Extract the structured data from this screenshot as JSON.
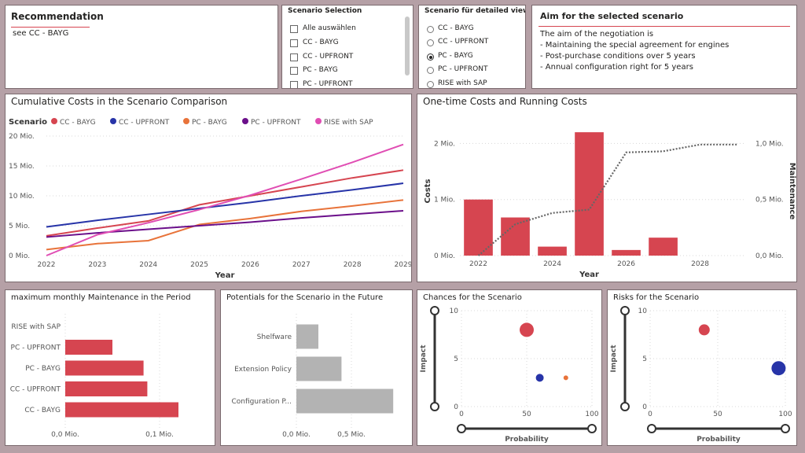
{
  "recommendation": {
    "title": "Recommendation",
    "text": "see CC - BAYG"
  },
  "scenario_selection": {
    "title": "Scenario Selection",
    "items": [
      "Alle auswählen",
      "CC - BAYG",
      "CC - UPFRONT",
      "PC - BAYG",
      "PC - UPFRONT"
    ]
  },
  "scenario_detail": {
    "title": "Scenario für detailed view",
    "items": [
      "CC - BAYG",
      "CC - UPFRONT",
      "PC - BAYG",
      "PC - UPFRONT",
      "RISE with SAP"
    ],
    "selected": "PC - BAYG"
  },
  "aim": {
    "title": "Aim for the selected scenario",
    "lines": [
      "The aim of the negotiation is",
      "- Maintaining the special agreement for engines",
      "- Post-purchase conditions over 5 years",
      "- Annual configuration right for 5 years"
    ]
  },
  "colors": {
    "accent": "#d64550",
    "cc_bayg": "#d64550",
    "cc_upfront": "#2734a8",
    "pc_bayg": "#e8733a",
    "pc_upfront": "#6b0f8a",
    "rise": "#e04db3",
    "gray_bar": "#b3b3b3"
  },
  "chart_data": [
    {
      "type": "line",
      "title": "Cumulative Costs in the Scenario Comparison",
      "legend_title": "Scenario",
      "xlabel": "Year",
      "x": [
        2022,
        2023,
        2024,
        2025,
        2026,
        2027,
        2028,
        2029
      ],
      "x_tick_labels": [
        "2022",
        "2023",
        "2024",
        "2025",
        "2026",
        "2027",
        "2028",
        "2029"
      ],
      "y_tick_labels": [
        "0 Mio.",
        "5 Mio.",
        "10 Mio.",
        "15 Mio.",
        "20 Mio."
      ],
      "ylim": [
        0,
        20
      ],
      "series": [
        {
          "name": "CC - BAYG",
          "values": [
            3.3,
            4.6,
            5.8,
            8.5,
            10.0,
            11.5,
            13.0,
            14.3
          ]
        },
        {
          "name": "CC - UPFRONT",
          "values": [
            4.8,
            5.9,
            6.9,
            7.9,
            8.9,
            10.0,
            11.0,
            12.1
          ]
        },
        {
          "name": "PC - BAYG",
          "values": [
            1.0,
            2.0,
            2.5,
            5.2,
            6.2,
            7.4,
            8.3,
            9.3
          ]
        },
        {
          "name": "PC - UPFRONT",
          "values": [
            3.1,
            3.8,
            4.4,
            5.0,
            5.6,
            6.3,
            6.9,
            7.5
          ]
        },
        {
          "name": "RISE with SAP",
          "values": [
            0.0,
            3.5,
            5.5,
            7.7,
            10.1,
            12.8,
            15.6,
            18.6
          ]
        }
      ]
    },
    {
      "type": "bar",
      "title": "One-time Costs and Running Costs",
      "xlabel": "Year",
      "ylabel": "Costs",
      "y2label": "Maintenance",
      "x": [
        2022,
        2023,
        2024,
        2025,
        2026,
        2027
      ],
      "x_tick_labels": [
        "2022",
        "2024",
        "2026",
        "2028"
      ],
      "x_ticks": [
        2022,
        2024,
        2026,
        2028
      ],
      "y_tick_labels": [
        "0 Mio.",
        "1 Mio.",
        "2 Mio."
      ],
      "y2_tick_labels": [
        "0,0 Mio.",
        "0,5 Mio.",
        "1,0 Mio."
      ],
      "ylim": [
        0,
        2.3
      ],
      "y2lim": [
        0,
        1.15
      ],
      "bars": [
        1.0,
        0.68,
        0.16,
        2.2,
        0.1,
        0.32
      ],
      "line_x": [
        2022,
        2023,
        2024,
        2025,
        2026,
        2027,
        2028,
        2029
      ],
      "line_values": [
        0.0,
        0.28,
        0.38,
        0.41,
        0.92,
        0.93,
        0.99,
        0.99
      ]
    },
    {
      "type": "bar",
      "orientation": "horizontal",
      "title": "maximum monthly Maintenance in the Period",
      "categories": [
        "RISE with SAP",
        "PC - UPFRONT",
        "PC - BAYG",
        "CC - UPFRONT",
        "CC - BAYG"
      ],
      "values": [
        0.0,
        0.05,
        0.083,
        0.087,
        0.12
      ],
      "x_tick_labels": [
        "0,0 Mio.",
        "0,1 Mio."
      ],
      "xlim": [
        0,
        0.15
      ]
    },
    {
      "type": "bar",
      "orientation": "horizontal",
      "title": "Potentials for the Scenario in the Future",
      "categories": [
        "Shelfware",
        "Extension Policy",
        "Configuration P..."
      ],
      "values": [
        0.2,
        0.41,
        0.88
      ],
      "x_tick_labels": [
        "0,0 Mio.",
        "0,5 Mio."
      ],
      "xlim": [
        0,
        1.0
      ]
    },
    {
      "type": "scatter",
      "title": "Chances for the Scenario",
      "xlabel": "Probability",
      "ylabel": "Impact",
      "xlim": [
        0,
        100
      ],
      "ylim": [
        0,
        10
      ],
      "x_tick_labels": [
        "0",
        "50",
        "100"
      ],
      "y_tick_labels": [
        "0",
        "5",
        "10"
      ],
      "points": [
        {
          "x": 50,
          "y": 8,
          "size": 8,
          "color": "#d64550"
        },
        {
          "x": 60,
          "y": 3,
          "size": 4,
          "color": "#2734a8"
        },
        {
          "x": 80,
          "y": 3,
          "size": 2,
          "color": "#e8733a"
        }
      ]
    },
    {
      "type": "scatter",
      "title": "Risks for the Scenario",
      "xlabel": "Probability",
      "ylabel": "Impact",
      "xlim": [
        0,
        100
      ],
      "ylim": [
        0,
        10
      ],
      "x_tick_labels": [
        "0",
        "50",
        "100"
      ],
      "y_tick_labels": [
        "0",
        "5",
        "10"
      ],
      "points": [
        {
          "x": 40,
          "y": 8,
          "size": 6,
          "color": "#d64550"
        },
        {
          "x": 95,
          "y": 4,
          "size": 8,
          "color": "#2734a8"
        }
      ]
    }
  ]
}
